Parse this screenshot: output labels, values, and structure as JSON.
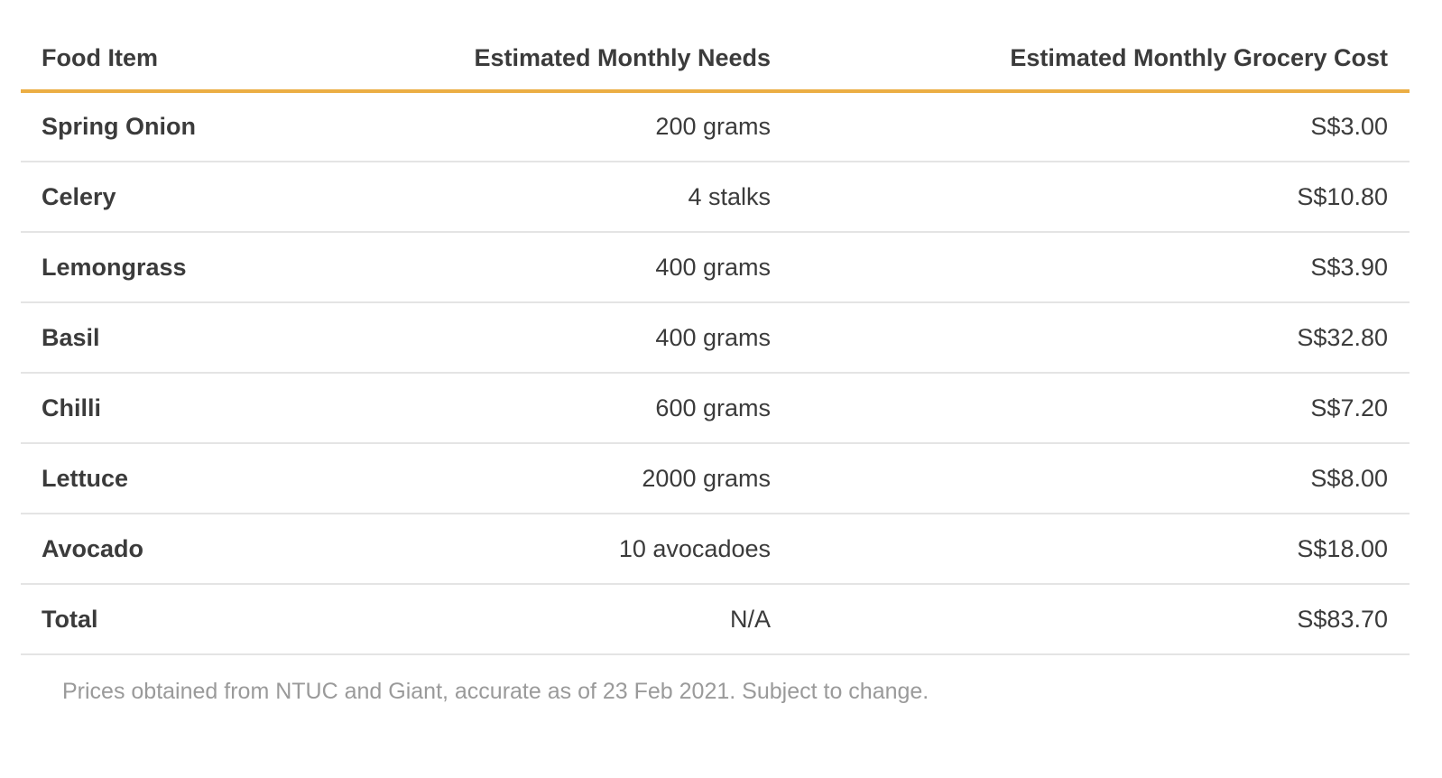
{
  "chart_data": {
    "type": "table",
    "columns": [
      "Food Item",
      "Estimated Monthly Needs",
      "Estimated Monthly Grocery Cost"
    ],
    "rows": [
      [
        "Spring Onion",
        "200 grams",
        "S$3.00"
      ],
      [
        "Celery",
        "4 stalks",
        "S$10.80"
      ],
      [
        "Lemongrass",
        "400 grams",
        "S$3.90"
      ],
      [
        "Basil",
        "400 grams",
        "S$32.80"
      ],
      [
        "Chilli",
        "600 grams",
        "S$7.20"
      ],
      [
        "Lettuce",
        "2000 grams",
        "S$8.00"
      ],
      [
        "Avocado",
        "10 avocadoes",
        "S$18.00"
      ],
      [
        "Total",
        "N/A",
        "S$83.70"
      ]
    ],
    "note": "Prices obtained from NTUC and Giant, accurate as of 23 Feb 2021. Subject to change.",
    "layout": {
      "column_alignments": [
        "left",
        "right",
        "right"
      ],
      "grid": "horizontal-dividers-only",
      "legend_position": "none"
    }
  },
  "colors": {
    "background": "#ffffff",
    "header_rule": "#ebae44",
    "row_divider": "#e4e4e4",
    "text": "#3b3b3b",
    "note_text": "#9a9a9a"
  }
}
